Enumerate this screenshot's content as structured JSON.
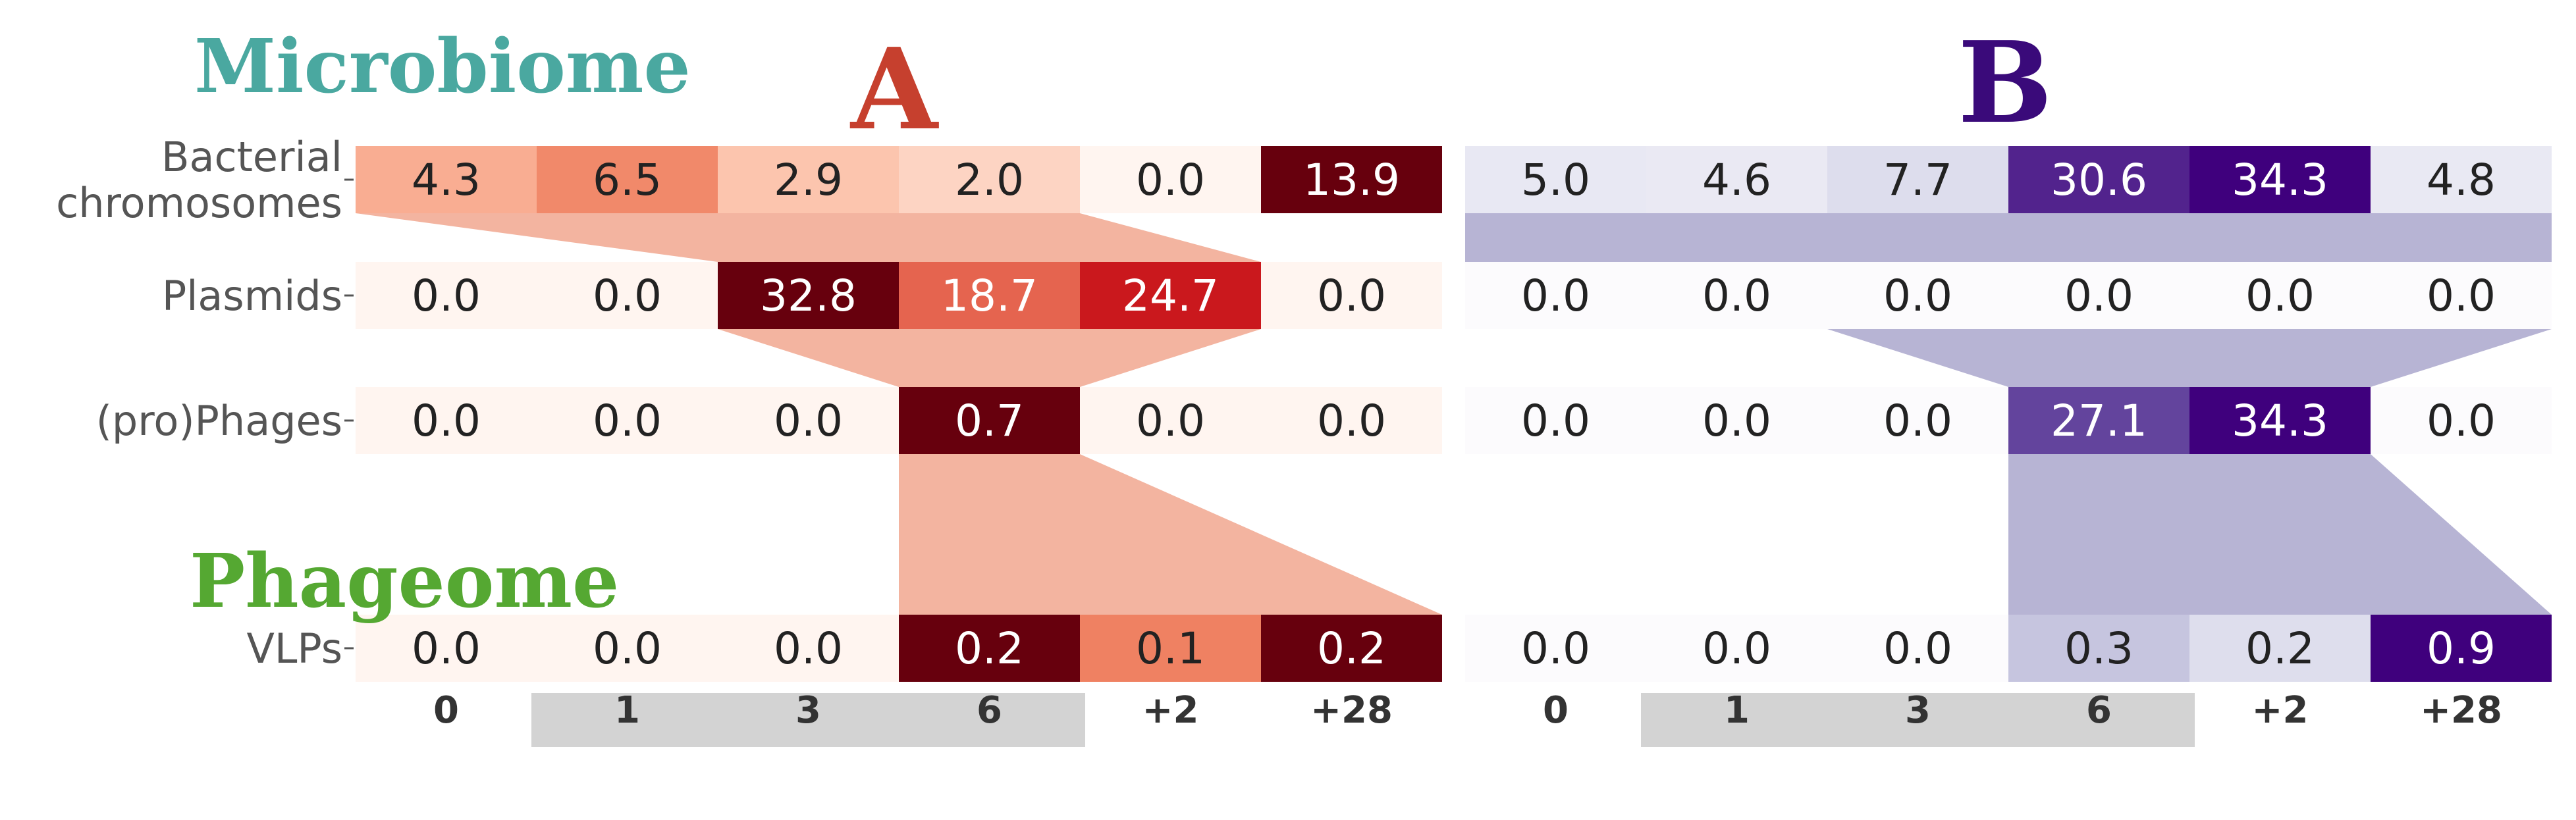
{
  "labels": {
    "microbiome": "Microbiome",
    "phageome": "Phageome",
    "panel_a": "A",
    "panel_b": "B"
  },
  "colors": {
    "microbiome_label": "#4aa8a0",
    "phageome_label": "#55a832",
    "panel_a_letter": "#c6402e",
    "panel_b_letter": "#3a0a7a",
    "ribbon_a": "#f3b4a0",
    "ribbon_b": "#b7b4d4",
    "col_highlight": "#d3d3d3"
  },
  "chart_data": [
    {
      "type": "heatmap",
      "panel": "A",
      "colormap": "Reds",
      "rows": [
        "Bacterial\nchromosomes",
        "Plasmids",
        "(pro)Phages",
        "VLPs"
      ],
      "columns": [
        "0",
        "1",
        "3",
        "6",
        "+2",
        "+28"
      ],
      "highlighted_columns": [
        "1",
        "3",
        "6"
      ],
      "values": [
        [
          4.3,
          6.5,
          2.9,
          2.0,
          0.0,
          13.9
        ],
        [
          0.0,
          0.0,
          32.8,
          18.7,
          24.7,
          0.0
        ],
        [
          0.0,
          0.0,
          0.0,
          0.7,
          0.0,
          0.0
        ],
        [
          0.0,
          0.0,
          0.0,
          0.2,
          0.1,
          0.2
        ]
      ],
      "ribbons": [
        {
          "from_row": 0,
          "from_cols": [
            0,
            3
          ],
          "to_row": 1,
          "to_cols": [
            2,
            4
          ]
        },
        {
          "from_row": 1,
          "from_cols": [
            2,
            4
          ],
          "to_row": 2,
          "to_cols": [
            3,
            3
          ]
        },
        {
          "from_row": 2,
          "from_cols": [
            3,
            3
          ],
          "to_row": 3,
          "to_cols": [
            3,
            5
          ]
        }
      ]
    },
    {
      "type": "heatmap",
      "panel": "B",
      "colormap": "Purples",
      "rows": [
        "Bacterial\nchromosomes",
        "Plasmids",
        "(pro)Phages",
        "VLPs"
      ],
      "columns": [
        "0",
        "1",
        "3",
        "6",
        "+2",
        "+28"
      ],
      "highlighted_columns": [
        "1",
        "3",
        "6"
      ],
      "values": [
        [
          5.0,
          4.6,
          7.7,
          30.6,
          34.3,
          4.8
        ],
        [
          0.0,
          0.0,
          0.0,
          0.0,
          0.0,
          0.0
        ],
        [
          0.0,
          0.0,
          0.0,
          27.1,
          34.3,
          0.0
        ],
        [
          0.0,
          0.0,
          0.0,
          0.3,
          0.2,
          0.9
        ]
      ],
      "ribbons": [
        {
          "from_row": 0,
          "from_cols": [
            0,
            5
          ],
          "to_row": 1,
          "to_cols": [
            0,
            5
          ]
        },
        {
          "from_row": 1,
          "from_cols": [
            2,
            5
          ],
          "to_row": 2,
          "to_cols": [
            3,
            4
          ]
        },
        {
          "from_row": 2,
          "from_cols": [
            3,
            4
          ],
          "to_row": 3,
          "to_cols": [
            3,
            5
          ]
        }
      ]
    }
  ]
}
